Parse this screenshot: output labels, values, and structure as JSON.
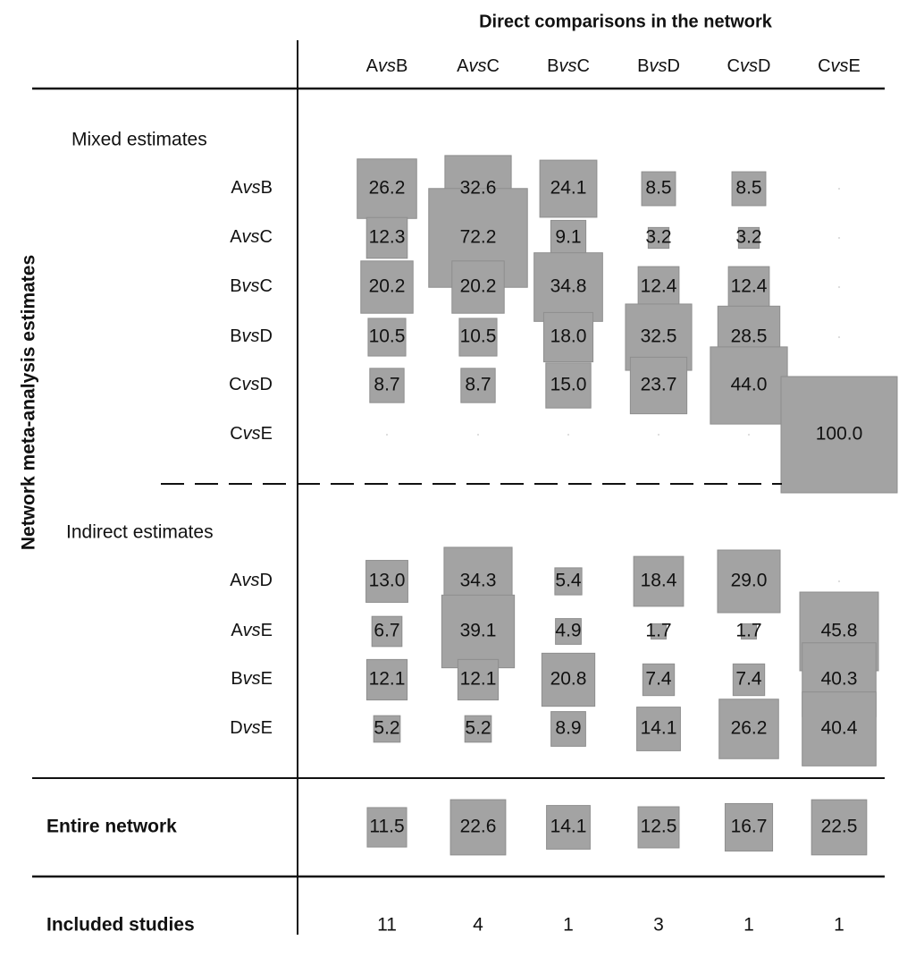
{
  "chart_data": {
    "type": "heatmap",
    "title": "Direct comparisons in the network",
    "ylabel": "Network meta-analysis estimates",
    "columns": [
      "AvsB",
      "AvsC",
      "BvsC",
      "BvsD",
      "CvsD",
      "CvsE"
    ],
    "sections": [
      {
        "label": "Mixed estimates",
        "rows": [
          {
            "label": "AvsB",
            "values": [
              26.2,
              32.6,
              24.1,
              8.5,
              8.5,
              null
            ]
          },
          {
            "label": "AvsC",
            "values": [
              12.3,
              72.2,
              9.1,
              3.2,
              3.2,
              null
            ]
          },
          {
            "label": "BvsC",
            "values": [
              20.2,
              20.2,
              34.8,
              12.4,
              12.4,
              null
            ]
          },
          {
            "label": "BvsD",
            "values": [
              10.5,
              10.5,
              18.0,
              32.5,
              28.5,
              null
            ]
          },
          {
            "label": "CvsD",
            "values": [
              8.7,
              8.7,
              15.0,
              23.7,
              44.0,
              null
            ]
          },
          {
            "label": "CvsE",
            "values": [
              null,
              null,
              null,
              null,
              null,
              100.0
            ]
          }
        ]
      },
      {
        "label": "Indirect estimates",
        "rows": [
          {
            "label": "AvsD",
            "values": [
              13.0,
              34.3,
              5.4,
              18.4,
              29.0,
              null
            ]
          },
          {
            "label": "AvsE",
            "values": [
              6.7,
              39.1,
              4.9,
              1.7,
              1.7,
              45.8
            ]
          },
          {
            "label": "BvsE",
            "values": [
              12.1,
              12.1,
              20.8,
              7.4,
              7.4,
              40.3
            ]
          },
          {
            "label": "DvsE",
            "values": [
              5.2,
              5.2,
              8.9,
              14.1,
              26.2,
              40.4
            ]
          }
        ]
      }
    ],
    "summary_rows": [
      {
        "label": "Entire network",
        "values": [
          11.5,
          22.6,
          14.1,
          12.5,
          16.7,
          22.5
        ]
      },
      {
        "label": "Included studies",
        "values": [
          11,
          4,
          1,
          3,
          1,
          1
        ]
      }
    ],
    "colors": {
      "square": "#a3a3a3",
      "square_stroke": "#8e8e8e",
      "text": "#111111",
      "rule": "#111111"
    }
  }
}
